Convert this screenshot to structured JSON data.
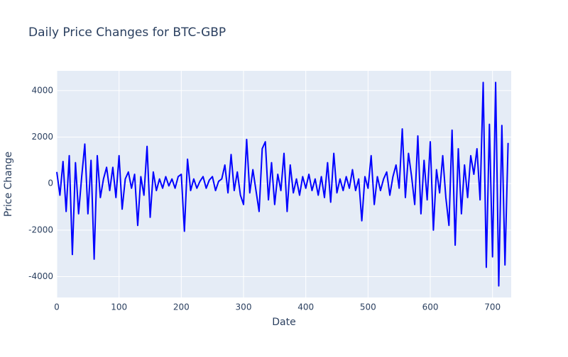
{
  "chart_data": {
    "type": "line",
    "title": "Daily Price Changes for BTC-GBP",
    "x_label": "Date",
    "y_label": "Price Change",
    "x": [
      0,
      5,
      10,
      15,
      20,
      25,
      30,
      35,
      40,
      45,
      50,
      55,
      60,
      65,
      70,
      75,
      80,
      85,
      90,
      95,
      100,
      105,
      110,
      115,
      120,
      125,
      130,
      135,
      140,
      145,
      150,
      155,
      160,
      165,
      170,
      175,
      180,
      185,
      190,
      195,
      200,
      205,
      210,
      215,
      220,
      225,
      230,
      235,
      240,
      245,
      250,
      255,
      260,
      265,
      270,
      275,
      280,
      285,
      290,
      295,
      300,
      305,
      310,
      315,
      320,
      325,
      330,
      335,
      340,
      345,
      350,
      355,
      360,
      365,
      370,
      375,
      380,
      385,
      390,
      395,
      400,
      405,
      410,
      415,
      420,
      425,
      430,
      435,
      440,
      445,
      450,
      455,
      460,
      465,
      470,
      475,
      480,
      485,
      490,
      495,
      500,
      505,
      510,
      515,
      520,
      525,
      530,
      535,
      540,
      545,
      550,
      555,
      560,
      565,
      570,
      575,
      580,
      585,
      590,
      595,
      600,
      605,
      610,
      615,
      620,
      625,
      630,
      635,
      640,
      645,
      650,
      655,
      660,
      665,
      670,
      675,
      680,
      685,
      690,
      695,
      700,
      705,
      710,
      715,
      720,
      725
    ],
    "values": [
      500,
      -500,
      950,
      -1200,
      1200,
      -3050,
      900,
      -1300,
      300,
      1700,
      -1300,
      1000,
      -3250,
      1200,
      -600,
      200,
      700,
      -300,
      700,
      -600,
      1200,
      -1100,
      200,
      500,
      -200,
      400,
      -1800,
      300,
      -500,
      1600,
      -1450,
      500,
      -300,
      200,
      -200,
      300,
      -100,
      200,
      -200,
      300,
      400,
      -2050,
      1050,
      -300,
      200,
      -200,
      100,
      300,
      -200,
      150,
      300,
      -300,
      100,
      200,
      800,
      -400,
      1250,
      -300,
      500,
      -500,
      -900,
      1900,
      -400,
      600,
      -300,
      -1200,
      1500,
      1800,
      -700,
      900,
      -900,
      400,
      -300,
      1300,
      -1200,
      800,
      -400,
      200,
      -500,
      300,
      -200,
      400,
      -300,
      200,
      -500,
      300,
      -600,
      900,
      -800,
      1300,
      -400,
      200,
      -300,
      300,
      -200,
      600,
      -300,
      200,
      -1600,
      300,
      -200,
      1200,
      -900,
      300,
      -300,
      200,
      500,
      -500,
      300,
      800,
      -200,
      2350,
      -600,
      1300,
      300,
      -900,
      2050,
      -1300,
      1000,
      -700,
      1800,
      -2000,
      600,
      -400,
      1200,
      -600,
      -1800,
      2300,
      -2650,
      1500,
      -1300,
      800,
      -600,
      1200,
      400,
      1500,
      -700,
      4350,
      -3600,
      2550,
      -3150,
      4350,
      -4400,
      2500,
      -3500,
      1750
    ],
    "color": "#0000ff",
    "xlim": [
      0,
      730
    ],
    "ylim": [
      -4900,
      4850
    ],
    "xticks": [
      0,
      100,
      200,
      300,
      400,
      500,
      600,
      700
    ],
    "yticks": [
      -4000,
      -2000,
      0,
      2000,
      4000
    ],
    "grid": true
  }
}
